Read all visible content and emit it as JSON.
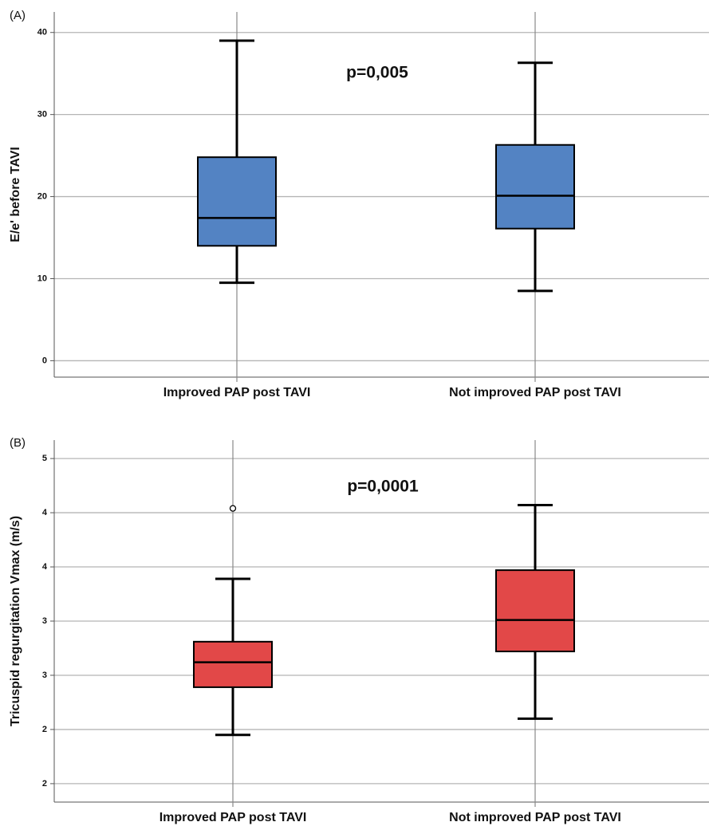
{
  "chart_data": [
    {
      "type": "box",
      "panel_label": "(A)",
      "annotation": "p=0,005",
      "ylabel": "E/e' before TAVI",
      "categories": [
        "Improved PAP post TAVI",
        "Not improved PAP post TAVI"
      ],
      "boxes": [
        {
          "min": 9.5,
          "q1": 14.0,
          "median": 17.4,
          "q3": 24.8,
          "max": 39.0,
          "outliers": []
        },
        {
          "min": 8.5,
          "q1": 16.1,
          "median": 20.1,
          "q3": 26.3,
          "max": 36.3,
          "outliers": []
        }
      ],
      "color": "#5383c3",
      "ylim": [
        -2,
        42.5
      ],
      "yticks": [
        0,
        10,
        20,
        30,
        40
      ],
      "grid": true
    },
    {
      "type": "box",
      "panel_label": "(B)",
      "annotation": "p=0,0001",
      "ylabel": "Tricuspid regurgitation Vmax (m/s)",
      "categories": [
        "Improved PAP post TAVI",
        "Not improved PAP post TAVI"
      ],
      "boxes": [
        {
          "min": 2.45,
          "q1": 2.89,
          "median": 3.12,
          "q3": 3.31,
          "max": 3.89,
          "outliers": [
            4.54
          ]
        },
        {
          "min": 2.6,
          "q1": 3.22,
          "median": 3.51,
          "q3": 3.97,
          "max": 4.57,
          "outliers": []
        }
      ],
      "color": "#e24848",
      "ylim": [
        1.83,
        5.17
      ],
      "yticks": [
        {
          "value": 2,
          "label": "2"
        },
        {
          "value": 2.5,
          "label": "2"
        },
        {
          "value": 3,
          "label": "3"
        },
        {
          "value": 3.5,
          "label": "3"
        },
        {
          "value": 4,
          "label": "4"
        },
        {
          "value": 4.5,
          "label": "4"
        },
        {
          "value": 5,
          "label": "5"
        }
      ],
      "grid": true
    }
  ]
}
